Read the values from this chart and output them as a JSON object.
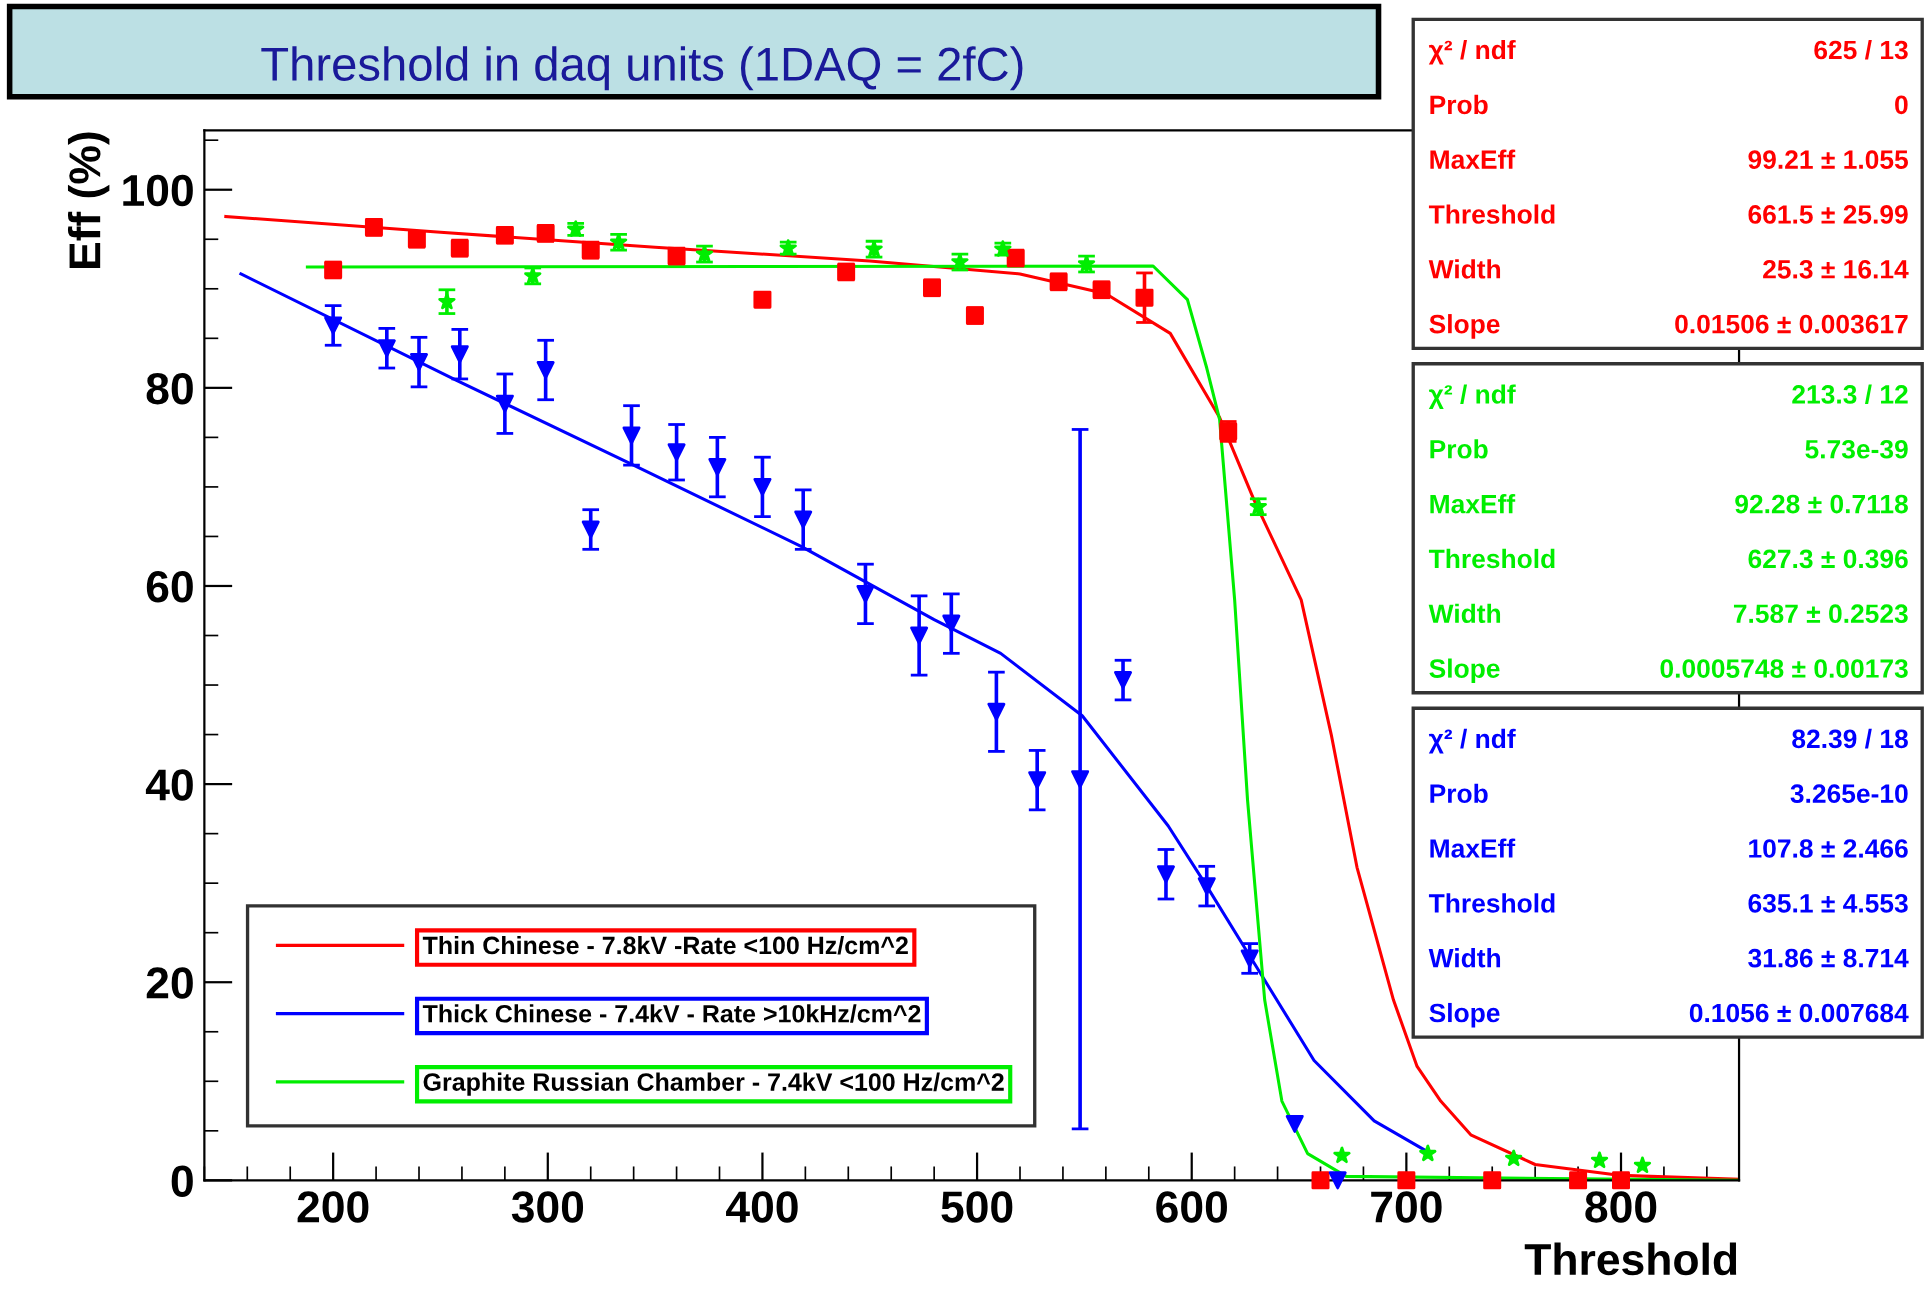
{
  "chart_data": {
    "type": "scatter",
    "title": "Threshold in daq units (1DAQ = 2fC)",
    "xlabel": "Threshold",
    "ylabel": "Eff (%)",
    "xlim": [
      142,
      855
    ],
    "xticks": [
      200,
      300,
      400,
      500,
      600,
      700,
      800
    ],
    "ylim": [
      0,
      106
    ],
    "yticks": [
      0,
      20,
      40,
      60,
      80,
      100
    ],
    "grid": false,
    "legend": "bottom left",
    "series": [
      {
        "name": "Thin Chinese - 7.8kV -Rate <100 Hz/cm^2",
        "color": "#ff0000",
        "marker": "square",
        "x": [
          200,
          219,
          239,
          259,
          280,
          299,
          320,
          360,
          400,
          439,
          479,
          499,
          518,
          538,
          558,
          578,
          617,
          660,
          700,
          740,
          780,
          800
        ],
        "values": [
          91.9,
          96.2,
          95,
          94.1,
          95.4,
          95.6,
          93.9,
          93.3,
          88.9,
          91.7,
          90.1,
          87.3,
          93.1,
          90.7,
          89.9,
          89.1,
          75.6,
          0,
          0,
          0,
          0,
          0
        ],
        "errors": [
          0.8,
          0.8,
          0.8,
          0.8,
          0.8,
          0.8,
          0.8,
          0.8,
          0.6,
          0.8,
          0.8,
          0.8,
          0.8,
          0.8,
          0.8,
          2.5,
          1,
          null,
          null,
          null,
          null,
          null
        ]
      },
      {
        "name": "Thick Chinese - 7.4kV - Rate >10kHz/cm^2",
        "color": "#0000ff",
        "marker": "triangle",
        "x": [
          200,
          225,
          240,
          259,
          280,
          299,
          320,
          339,
          360,
          379,
          400,
          419,
          448,
          473,
          488,
          509,
          528,
          548,
          568,
          588,
          607,
          627,
          648,
          668
        ],
        "values": [
          86.3,
          84,
          82.6,
          83.4,
          78.4,
          81.8,
          65.7,
          75.2,
          73.5,
          72,
          70,
          66.7,
          59.2,
          55,
          56.2,
          47.3,
          40.4,
          40.5,
          50.5,
          30.9,
          29.7,
          22.4,
          5.7,
          0
        ],
        "errors": [
          2,
          2,
          2.5,
          2.5,
          3,
          3,
          2,
          3,
          2.8,
          3,
          3,
          3,
          3,
          4,
          3,
          4,
          3,
          35.3,
          2,
          2.5,
          2,
          1.5,
          null,
          null
        ]
      },
      {
        "name": "Graphite Russian Chamber - 7.4kV <100 Hz/cm^2",
        "color": "#00ee00",
        "marker": "star",
        "x": [
          253,
          293,
          313,
          333,
          373,
          412,
          452,
          492,
          512,
          551,
          631,
          670,
          710,
          750,
          790,
          810
        ],
        "values": [
          88.7,
          91.3,
          96,
          94.7,
          93.5,
          94.1,
          94,
          92.7,
          94,
          92.5,
          68,
          2.5,
          2.7,
          2.2,
          2,
          1.5
        ],
        "errors": [
          1.2,
          0.8,
          0.6,
          0.8,
          0.8,
          0.6,
          0.8,
          0.8,
          0.6,
          0.8,
          0.8,
          null,
          null,
          null,
          null,
          null
        ]
      },
      {
        "type": "line",
        "color": "#ff0000",
        "marker": "none",
        "x": [
          150,
          250,
          350,
          450,
          520,
          560,
          590,
          613,
          629,
          651,
          665,
          677,
          694,
          705,
          716,
          730,
          760,
          800,
          855
        ],
        "values": [
          97.3,
          95.7,
          94.2,
          92.8,
          91.5,
          89.5,
          85.5,
          77,
          68.7,
          58.6,
          45,
          31.6,
          18.2,
          11.5,
          8,
          4.6,
          1.6,
          0.5,
          0.1
        ]
      },
      {
        "type": "line",
        "color": "#0000ff",
        "marker": "none",
        "x": [
          157,
          257,
          338,
          418,
          480,
          511,
          549,
          589,
          607,
          632,
          657,
          685,
          709
        ],
        "values": [
          91.5,
          80.8,
          72.4,
          64,
          56.6,
          53.2,
          46.9,
          35.8,
          29.7,
          20.9,
          12.1,
          6,
          3
        ]
      },
      {
        "type": "line",
        "color": "#00ee00",
        "marker": "none",
        "x": [
          188,
          582,
          598,
          607,
          613,
          620,
          626,
          634,
          642,
          654,
          672,
          855
        ],
        "values": [
          92.2,
          92.3,
          88.9,
          82,
          76.8,
          58.6,
          38.4,
          18.2,
          8,
          2.7,
          0.4,
          0
        ]
      }
    ],
    "annotations": [
      "χ² / ndf\t625 / 13\nProb\t0\nMaxEff\t99.21 ± 1.055\nThreshold\t661.5 ± 25.99\nWidth\t25.3 ± 16.14\nSlope\t0.01506 ± 0.003617",
      "χ² / ndf\t213.3 / 12\nProb\t5.73e-39\nMaxEff\t92.28 ± 0.7118\nThreshold\t627.3 ± 0.396\nWidth\t7.587 ± 0.2523\nSlope\t0.0005748 ± 0.00173",
      "χ² / ndf\t82.39 / 18\nProb\t3.265e-10\nMaxEff\t107.8 ± 2.466\nThreshold\t635.1 ± 4.553\nWidth\t31.86 ± 8.714\nSlope\t0.1056 ± 0.007684"
    ]
  }
}
